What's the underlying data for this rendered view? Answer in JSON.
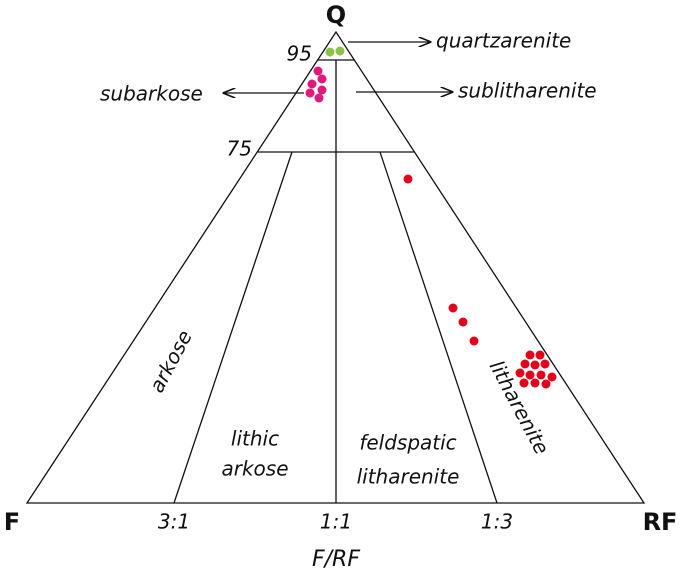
{
  "apex": {
    "top": "Q",
    "left": "F",
    "right": "RF"
  },
  "levels": [
    "95",
    "75"
  ],
  "ratios": [
    "3:1",
    "1:1",
    "1:3"
  ],
  "axis_label": "F/RF",
  "fields": {
    "quartzarenite": "quartzarenite",
    "subarkose": "subarkose",
    "sublitharenite": "sublitharenite",
    "arkose": "arkose",
    "lithic_arkose": [
      "lithic",
      "arkose"
    ],
    "feldspatic_litharenite": [
      "feldspatic",
      "litharenite"
    ],
    "litharenite": "litharenite"
  }
}
